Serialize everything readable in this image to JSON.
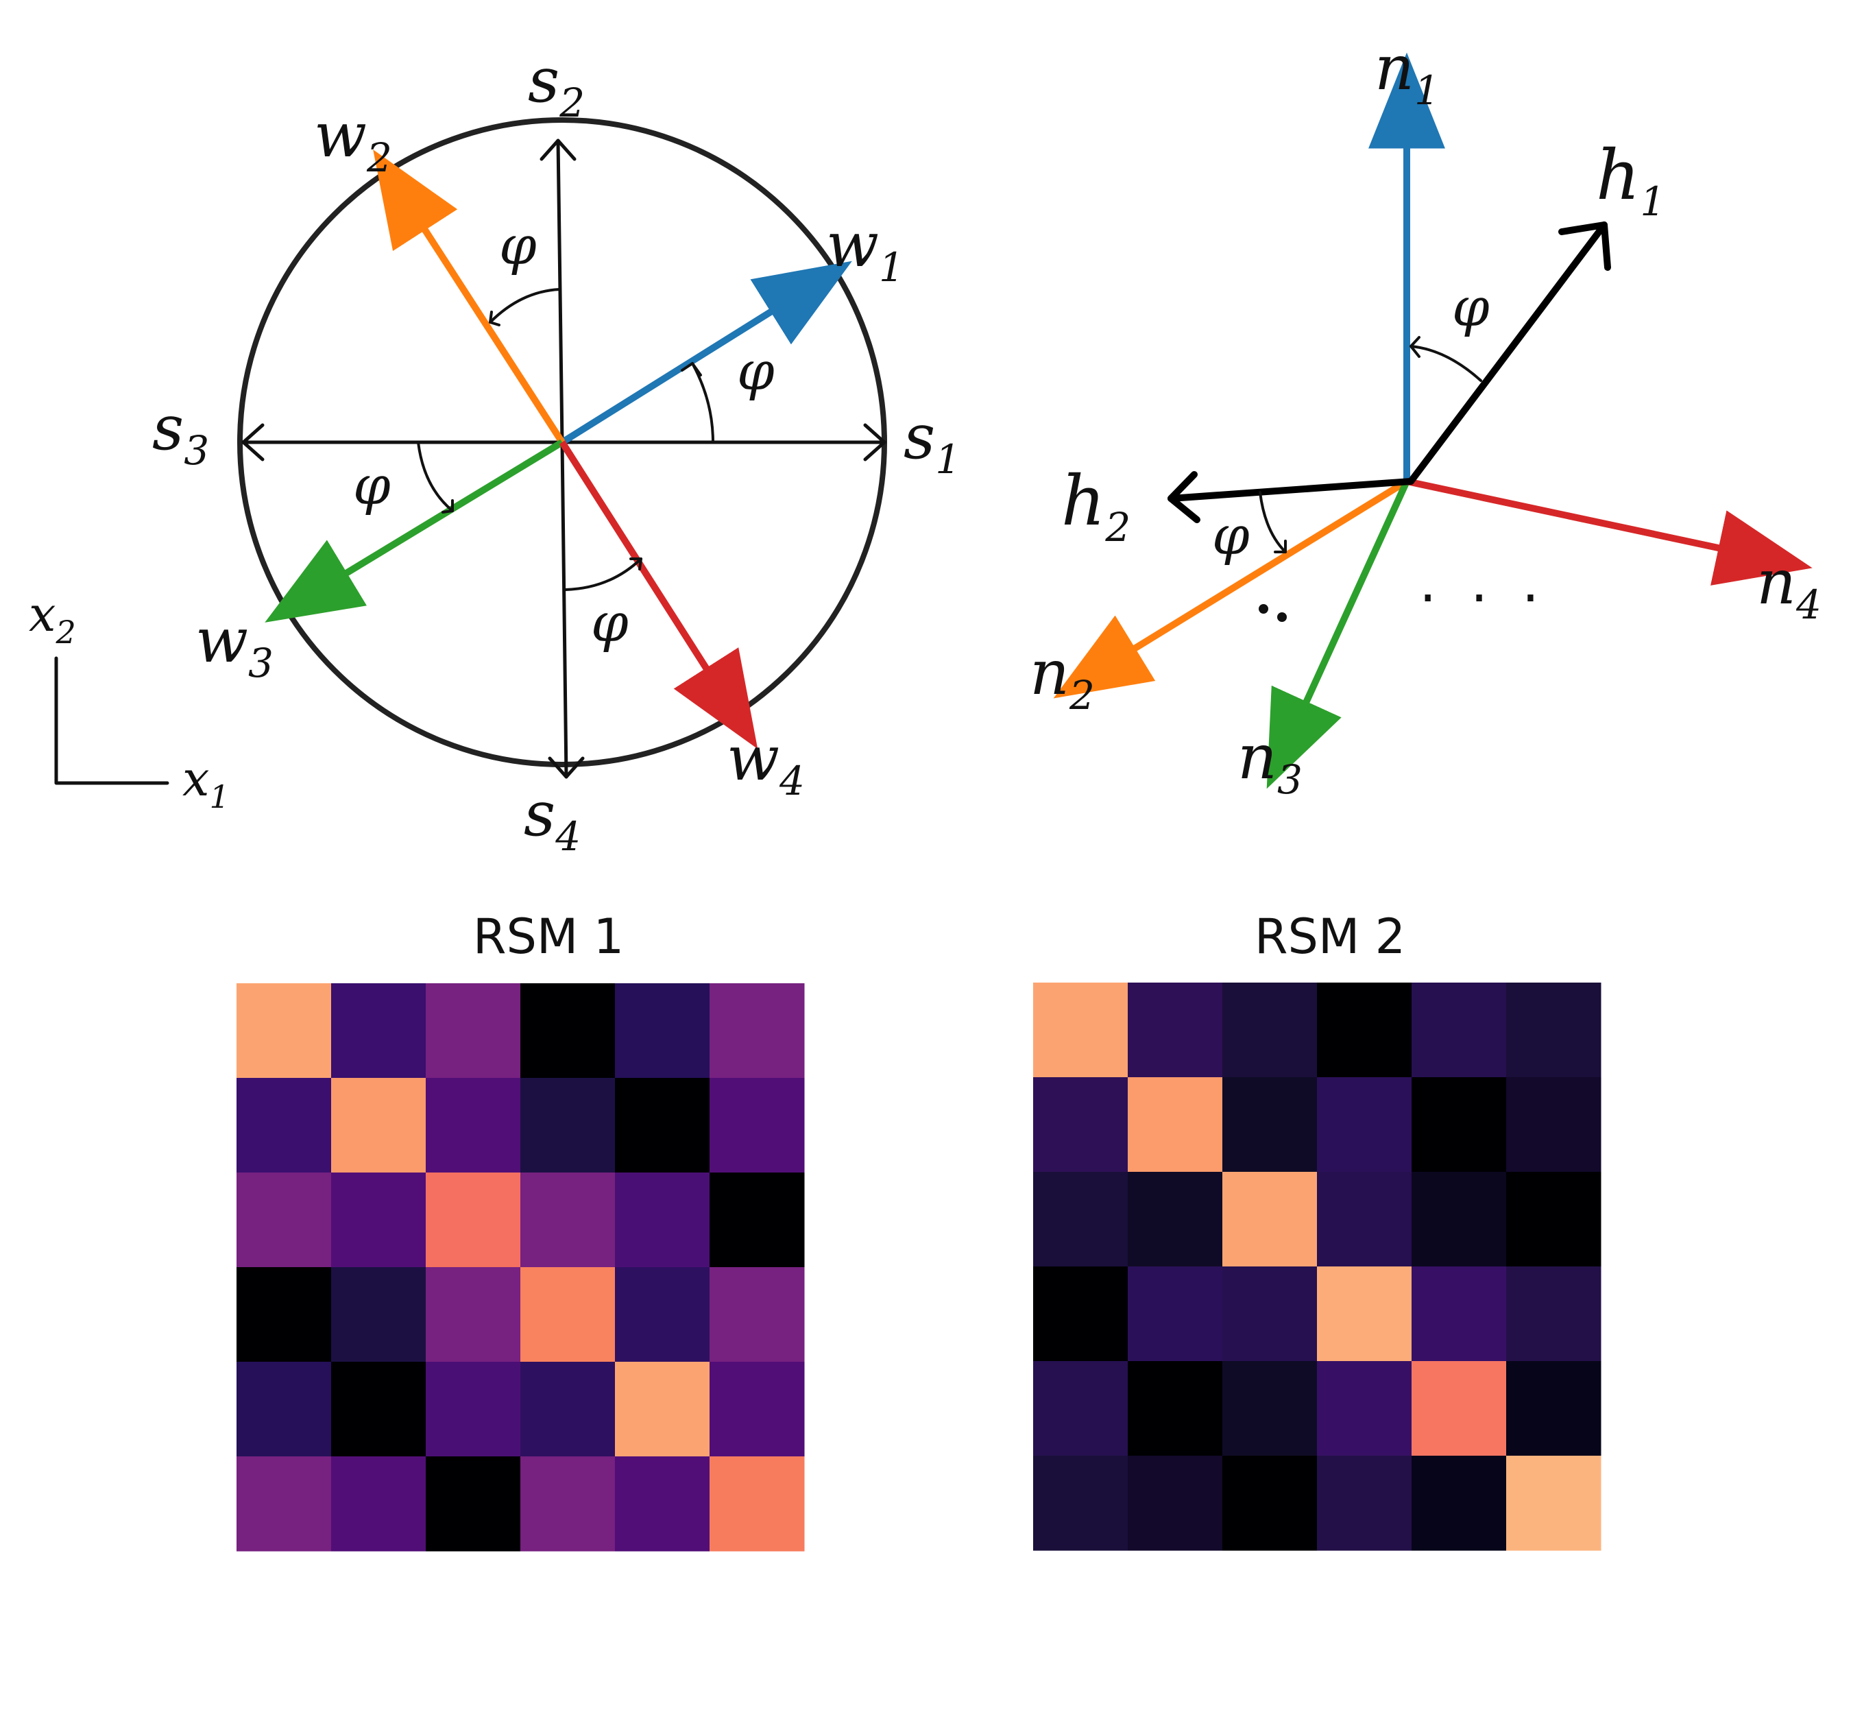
{
  "colors": {
    "blue": "#1f77b4",
    "orange": "#ff7f0e",
    "green": "#2ca02c",
    "red": "#d62728",
    "black": "#000000"
  },
  "left_panel": {
    "axis_labels": [
      {
        "base": "s",
        "sub": "1"
      },
      {
        "base": "s",
        "sub": "2"
      },
      {
        "base": "s",
        "sub": "3"
      },
      {
        "base": "s",
        "sub": "4"
      }
    ],
    "vector_labels": [
      {
        "base": "w",
        "sub": "1"
      },
      {
        "base": "w",
        "sub": "2"
      },
      {
        "base": "w",
        "sub": "3"
      },
      {
        "base": "w",
        "sub": "4"
      }
    ],
    "angle_symbol": "φ",
    "coord_labels": [
      {
        "base": "x",
        "sub": "2"
      },
      {
        "base": "x",
        "sub": "1"
      }
    ]
  },
  "right_panel": {
    "neuron_labels": [
      {
        "base": "n",
        "sub": "1"
      },
      {
        "base": "n",
        "sub": "2"
      },
      {
        "base": "n",
        "sub": "3"
      },
      {
        "base": "n",
        "sub": "4"
      }
    ],
    "hidden_labels": [
      {
        "base": "h",
        "sub": "1"
      },
      {
        "base": "h",
        "sub": "2"
      }
    ],
    "angle_symbol": "φ",
    "ellipsis": "· · ·"
  },
  "chart_data": [
    {
      "type": "heatmap",
      "title": "RSM 1",
      "matrix_colors": [
        [
          "#fca471",
          "#3a0f6e",
          "#772180",
          "#000003",
          "#251059",
          "#772180"
        ],
        [
          "#3a0f6e",
          "#fb9a6b",
          "#520e77",
          "#1c1043",
          "#000003",
          "#520e77"
        ],
        [
          "#772180",
          "#520e77",
          "#f57060",
          "#772180",
          "#4a0f75",
          "#000003"
        ],
        [
          "#000003",
          "#1c1043",
          "#772180",
          "#f9825f",
          "#2e1061",
          "#772180"
        ],
        [
          "#251059",
          "#000003",
          "#4a0f75",
          "#2e1061",
          "#fca471",
          "#520e77"
        ],
        [
          "#772180",
          "#520e77",
          "#000003",
          "#772180",
          "#520e77",
          "#f77c5e"
        ]
      ]
    },
    {
      "type": "heatmap",
      "title": "RSM 2",
      "matrix_colors": [
        [
          "#fca471",
          "#2e1057",
          "#1a0f3a",
          "#000003",
          "#261050",
          "#1a0f3a"
        ],
        [
          "#2e1057",
          "#fc9b6c",
          "#0f0b26",
          "#2a1059",
          "#000003",
          "#12092b"
        ],
        [
          "#1a0f3a",
          "#0f0b26",
          "#fca471",
          "#261050",
          "#0b071f",
          "#000003"
        ],
        [
          "#000003",
          "#2a1059",
          "#261050",
          "#fcac78",
          "#371065",
          "#231048"
        ],
        [
          "#261050",
          "#000003",
          "#0f0b26",
          "#371065",
          "#f67662",
          "#07051a"
        ],
        [
          "#1a0f3a",
          "#12092b",
          "#000003",
          "#231048",
          "#07051a",
          "#fcb47e"
        ]
      ]
    }
  ]
}
